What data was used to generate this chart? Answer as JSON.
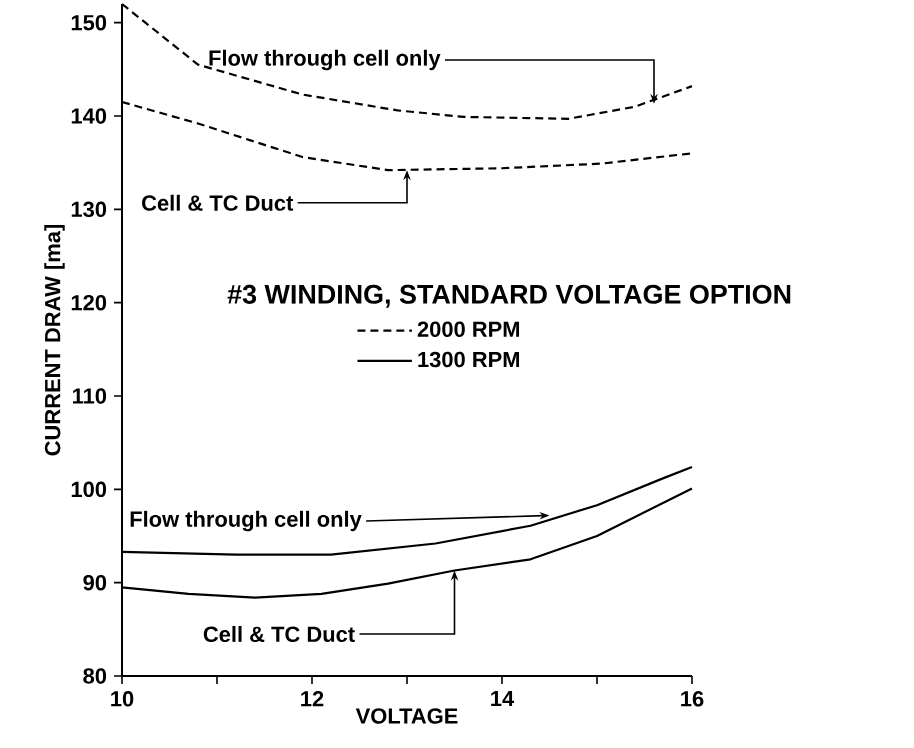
{
  "chart_data": {
    "type": "line",
    "title": "#3 WINDING, STANDARD VOLTAGE OPTION",
    "xlabel": "VOLTAGE",
    "ylabel": "CURRENT DRAW [ma]",
    "xlim": [
      10,
      16
    ],
    "ylim": [
      80,
      152
    ],
    "xticks": [
      10,
      {
        "value": 11,
        "label": null
      },
      12,
      {
        "value": 13,
        "label": null
      },
      14,
      {
        "value": 15,
        "label": null
      },
      16
    ],
    "yticks": [
      80,
      90,
      100,
      110,
      120,
      130,
      140,
      150
    ],
    "grid": false,
    "legend": "center",
    "marker": "none",
    "series": [
      {
        "name": "2000 RPM",
        "color": "#000000",
        "line_style": "dashed",
        "x": [
          10,
          10.8,
          11.9,
          12.9,
          13.6,
          14.7,
          15.4,
          16
        ],
        "values": [
          152,
          145.5,
          142.3,
          140.6,
          139.9,
          139.7,
          141,
          143.2
        ]
      },
      {
        "color": "#000000",
        "line_style": "dashed",
        "x": [
          10,
          10.8,
          11.9,
          12.8,
          14,
          15.05,
          16
        ],
        "values": [
          141.5,
          139.2,
          135.6,
          134.2,
          134.4,
          134.9,
          136
        ]
      },
      {
        "name": "1300 RPM",
        "color": "#000000",
        "line_style": "solid",
        "x": [
          10,
          11.2,
          12.2,
          13.3,
          14.3,
          15,
          15.7,
          16
        ],
        "values": [
          93.3,
          93,
          93,
          94.2,
          96.1,
          98.3,
          101.2,
          102.4
        ]
      },
      {
        "color": "#000000",
        "line_style": "solid",
        "x": [
          10,
          10.7,
          11.4,
          12.1,
          12.8,
          13.5,
          14.3,
          15,
          16
        ],
        "values": [
          89.5,
          88.8,
          88.4,
          88.8,
          89.9,
          91.3,
          92.5,
          95,
          100.1
        ]
      }
    ],
    "annotations": [
      {
        "text": "Flow through cell only",
        "x": 15.6,
        "y": 141.3
      },
      {
        "text": "Cell & TC Duct",
        "x": 13.0,
        "y": 134.2
      },
      {
        "text": "Flow through cell only",
        "x": 14.5,
        "y": 97.2
      },
      {
        "text": "Cell & TC Duct",
        "x": 13.5,
        "y": 91.3
      }
    ]
  }
}
